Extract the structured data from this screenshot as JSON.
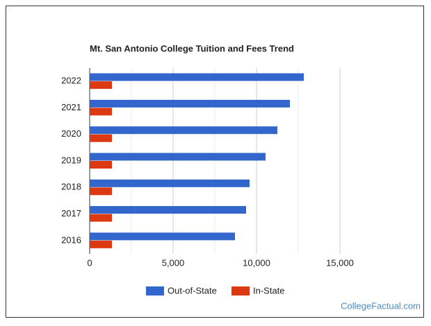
{
  "chart_data": {
    "type": "hbar",
    "title": "Mt. San Antonio College Tuition and Fees Trend",
    "categories": [
      "2022",
      "2021",
      "2020",
      "2019",
      "2018",
      "2017",
      "2016"
    ],
    "series": [
      {
        "name": "Out-of-State",
        "color": "#3366cc",
        "values": [
          12833,
          12000,
          11250,
          10542,
          9583,
          9375,
          8708
        ]
      },
      {
        "name": "In-State",
        "color": "#dc3912",
        "values": [
          1333,
          1333,
          1333,
          1333,
          1333,
          1333,
          1333
        ]
      }
    ],
    "xlim": [
      0,
      15000
    ],
    "xticks": [
      0,
      {
        "value": 5000,
        "label": "5,000"
      },
      {
        "value": 10000,
        "label": "10,000"
      },
      {
        "value": 15000,
        "label": "15,000"
      }
    ],
    "minor_xticks": [
      2500,
      7500,
      12500
    ],
    "grid": true,
    "legend": "bottom"
  },
  "watermark": "CollegeFactual.com"
}
